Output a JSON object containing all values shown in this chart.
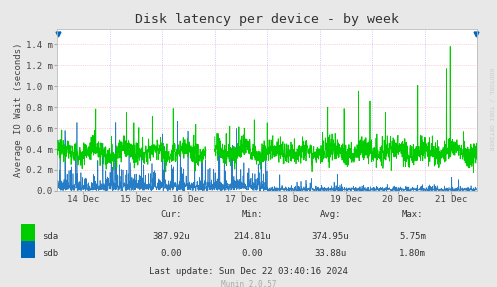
{
  "title": "Disk latency per device - by week",
  "ylabel": "Average IO Wait (seconds)",
  "background_color": "#e8e8e8",
  "plot_bg_color": "#ffffff",
  "grid_color_h": "#ffaaaa",
  "grid_color_v": "#aaaaff",
  "sda_color": "#00cc00",
  "sdb_color": "#0066bb",
  "x_tick_dates": [
    "14 Dec",
    "15 Dec",
    "16 Dec",
    "17 Dec",
    "18 Dec",
    "19 Dec",
    "20 Dec",
    "21 Dec"
  ],
  "cur_sda": "387.92u",
  "min_sda": "214.81u",
  "avg_sda": "374.95u",
  "max_sda": "5.75m",
  "cur_sdb": "0.00",
  "min_sdb": "0.00",
  "avg_sdb": "33.88u",
  "max_sdb": "1.80m",
  "last_update": "Last update: Sun Dec 22 03:40:16 2024",
  "munin_version": "Munin 2.0.57",
  "rrdtool_text": "RRDTOOL / TOBI OETIKER",
  "ylim_max": 0.00155,
  "sda_base": 0.00037,
  "sda_noise_scale": 5.5e-05,
  "sdb_early_scale": 0.00012,
  "sdb_late_scale": 1.8e-05,
  "spike_value": 0.00138
}
